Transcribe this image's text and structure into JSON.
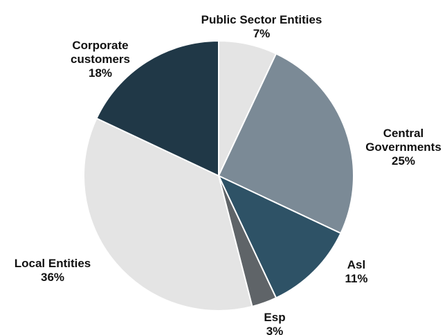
{
  "chart_data": {
    "type": "pie",
    "start_angle_deg": 0,
    "direction": "clockwise",
    "slices": [
      {
        "label_lines": [
          "Public Sector Entities"
        ],
        "value": 7,
        "value_label": "7%",
        "color": "#e4e4e4"
      },
      {
        "label_lines": [
          "Central",
          "Governments"
        ],
        "value": 25,
        "value_label": "25%",
        "color": "#7b8a96"
      },
      {
        "label_lines": [
          "Asl"
        ],
        "value": 11,
        "value_label": "11%",
        "color": "#2e5266"
      },
      {
        "label_lines": [
          "Esp"
        ],
        "value": 3,
        "value_label": "3%",
        "color": "#5f6468"
      },
      {
        "label_lines": [
          "Local Entities"
        ],
        "value": 36,
        "value_label": "36%",
        "color": "#e4e4e4"
      },
      {
        "label_lines": [
          "Corporate",
          "customers"
        ],
        "value": 18,
        "value_label": "18%",
        "color": "#203847"
      }
    ]
  }
}
